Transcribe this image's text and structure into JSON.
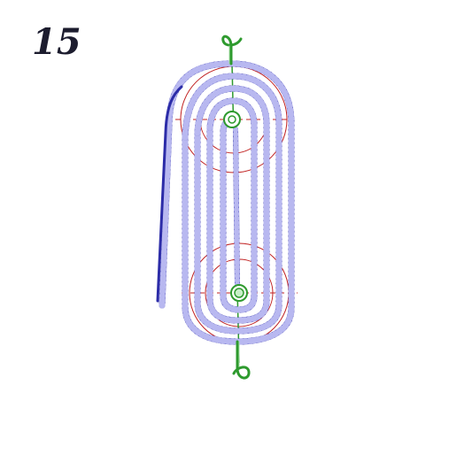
{
  "figure": {
    "number": "15"
  },
  "colors": {
    "rope": "#2c2ca8",
    "rope_highlight": "#8a8ae0",
    "sheave_circle": "#c02020",
    "hook": "#2e9a2e",
    "axis": "#2e9a2e"
  },
  "icons": {
    "upper_hook": "hook-icon",
    "lower_hook": "hook-icon",
    "upper_sheave": "pulley-icon",
    "lower_sheave": "pulley-icon"
  }
}
